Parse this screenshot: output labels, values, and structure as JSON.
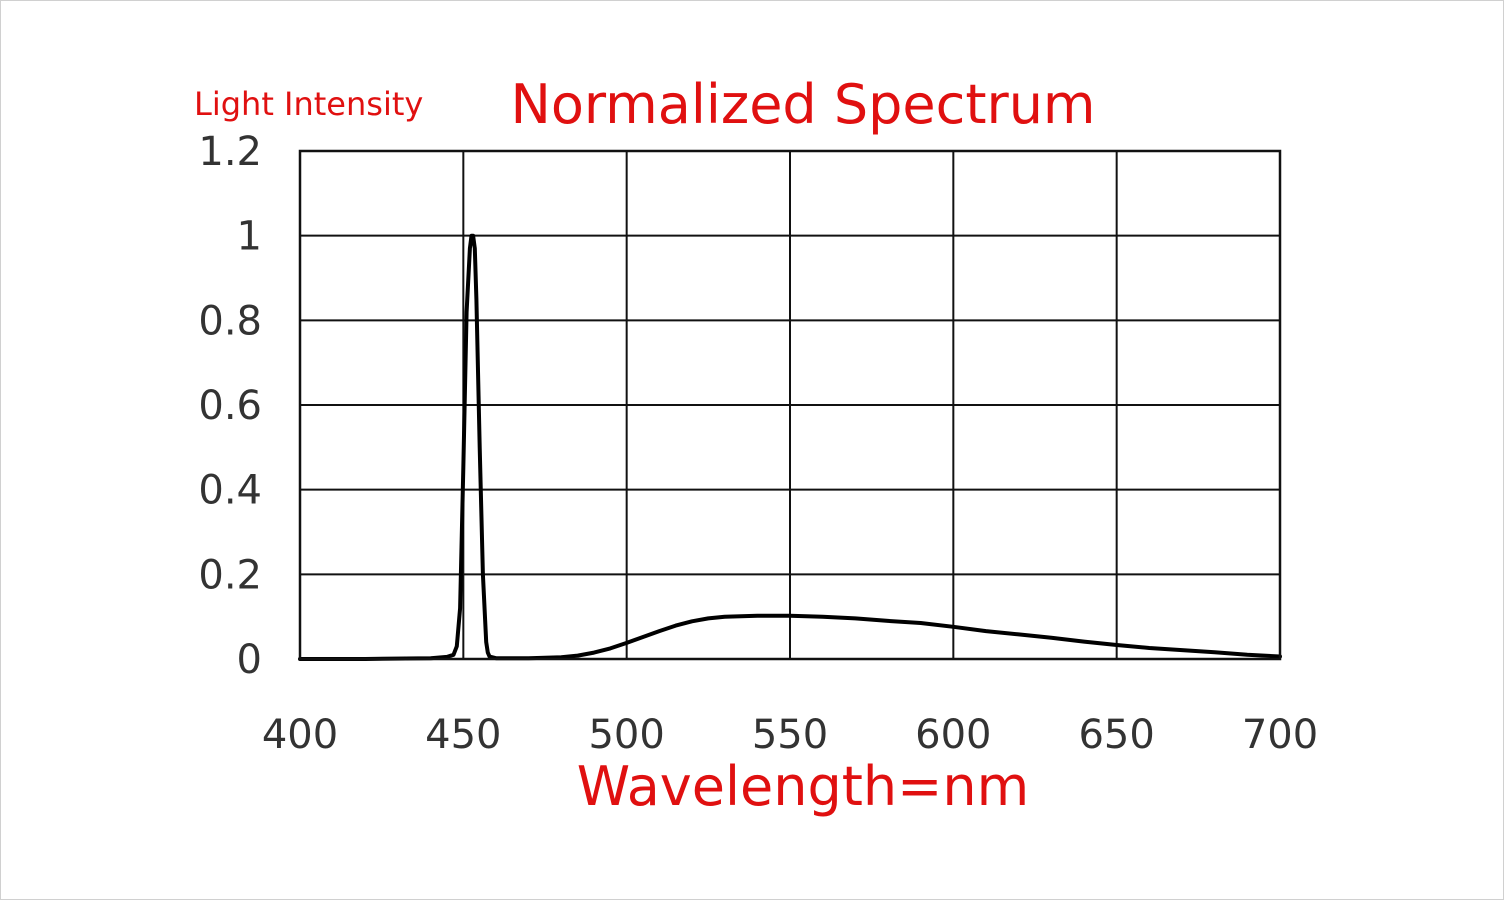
{
  "chart_data": {
    "type": "line",
    "title": "Normalized Spectrum",
    "ylabel": "Light Intensity",
    "xlabel": "Wavelength=nm",
    "xlim": [
      400,
      700
    ],
    "ylim": [
      0,
      1.2
    ],
    "x_ticks": [
      "400",
      "450",
      "500",
      "550",
      "600",
      "650",
      "700"
    ],
    "y_ticks": [
      "0",
      "0.2",
      "0.4",
      "0.6",
      "0.8",
      "1",
      "1.2"
    ],
    "grid": true,
    "colors": {
      "title": "#e01010",
      "line": "#000000",
      "grid": "#111111",
      "tick": "#333333"
    },
    "series": [
      {
        "x": [
          400,
          420,
          440,
          445,
          447,
          448,
          449,
          450,
          451,
          452,
          452.5,
          453,
          453.5,
          454,
          455,
          456,
          457,
          457.5,
          458,
          460,
          470,
          480,
          485,
          490,
          495,
          500,
          505,
          510,
          515,
          520,
          525,
          530,
          540,
          550,
          560,
          570,
          580,
          590,
          600,
          610,
          620,
          630,
          640,
          650,
          660,
          670,
          680,
          690,
          700
        ],
        "y": [
          0.0,
          0.0,
          0.002,
          0.005,
          0.01,
          0.03,
          0.12,
          0.45,
          0.82,
          0.97,
          1.0,
          1.0,
          0.97,
          0.85,
          0.5,
          0.2,
          0.04,
          0.015,
          0.006,
          0.002,
          0.002,
          0.004,
          0.008,
          0.015,
          0.025,
          0.038,
          0.052,
          0.066,
          0.079,
          0.089,
          0.096,
          0.1,
          0.102,
          0.102,
          0.1,
          0.096,
          0.09,
          0.085,
          0.076,
          0.066,
          0.058,
          0.05,
          0.041,
          0.033,
          0.026,
          0.021,
          0.016,
          0.01,
          0.006
        ]
      }
    ]
  }
}
